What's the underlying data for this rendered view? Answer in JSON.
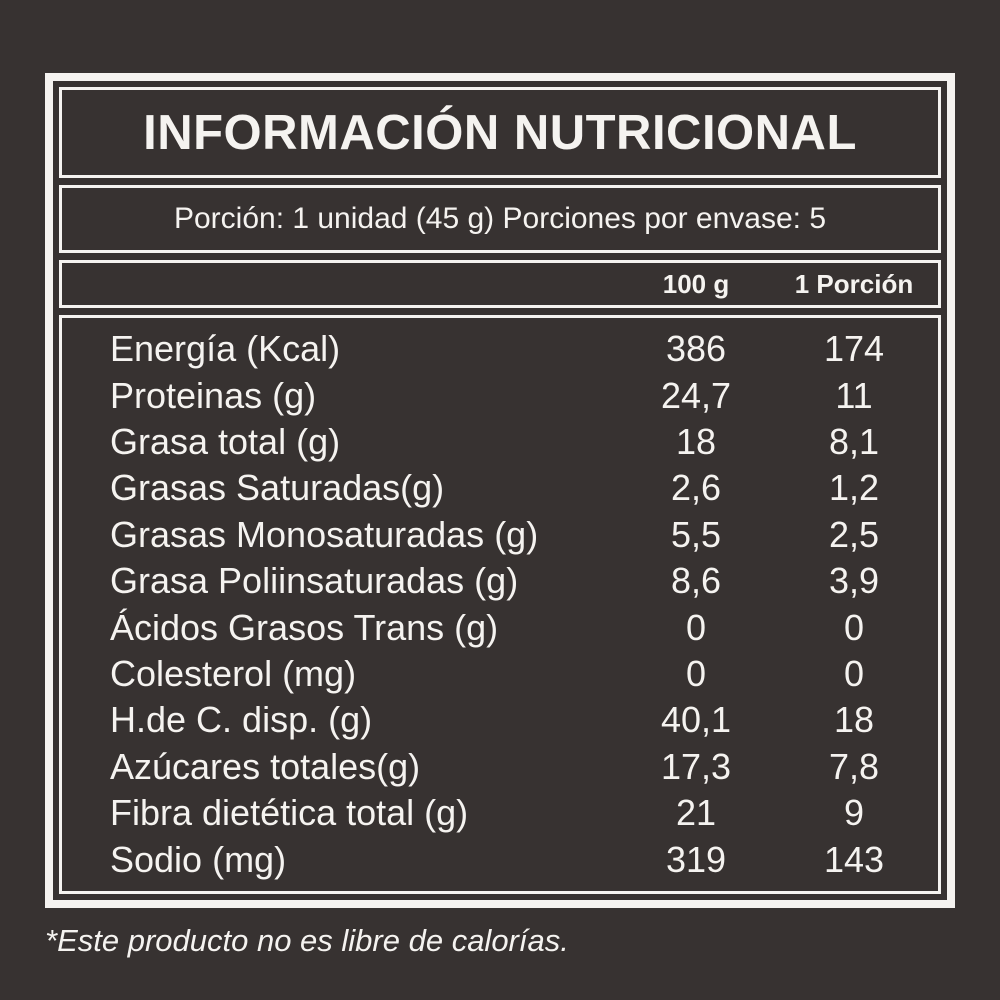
{
  "label": {
    "title": "INFORMACIÓN NUTRICIONAL",
    "portion_line": "Porción: 1 unidad (45 g) Porciones por envase: 5",
    "columns": {
      "per_100g": "100 g",
      "per_portion": "1 Porción"
    },
    "rows": [
      {
        "name": "Energía (Kcal)",
        "per100": "386",
        "perPortion": "174"
      },
      {
        "name": "Proteinas (g)",
        "per100": "24,7",
        "perPortion": "11"
      },
      {
        "name": "Grasa total (g)",
        "per100": "18",
        "perPortion": "8,1"
      },
      {
        "name": "Grasas Saturadas(g)",
        "per100": "2,6",
        "perPortion": "1,2"
      },
      {
        "name": "Grasas Monosaturadas (g)",
        "per100": "5,5",
        "perPortion": "2,5"
      },
      {
        "name": "Grasa Poliinsaturadas (g)",
        "per100": "8,6",
        "perPortion": "3,9"
      },
      {
        "name": "Ácidos Grasos Trans (g)",
        "per100": "0",
        "perPortion": "0"
      },
      {
        "name": "Colesterol (mg)",
        "per100": "0",
        "perPortion": "0"
      },
      {
        "name": "H.de C. disp. (g)",
        "per100": "40,1",
        "perPortion": "18"
      },
      {
        "name": "Azúcares totales(g)",
        "per100": "17,3",
        "perPortion": "7,8"
      },
      {
        "name": "Fibra dietética total (g)",
        "per100": "21",
        "perPortion": "9"
      },
      {
        "name": "Sodio (mg)",
        "per100": "319",
        "perPortion": "143"
      }
    ],
    "footnote": "*Este producto no es libre de calorías.",
    "colors": {
      "background": "#373231",
      "foreground": "#f5f3f0"
    }
  }
}
